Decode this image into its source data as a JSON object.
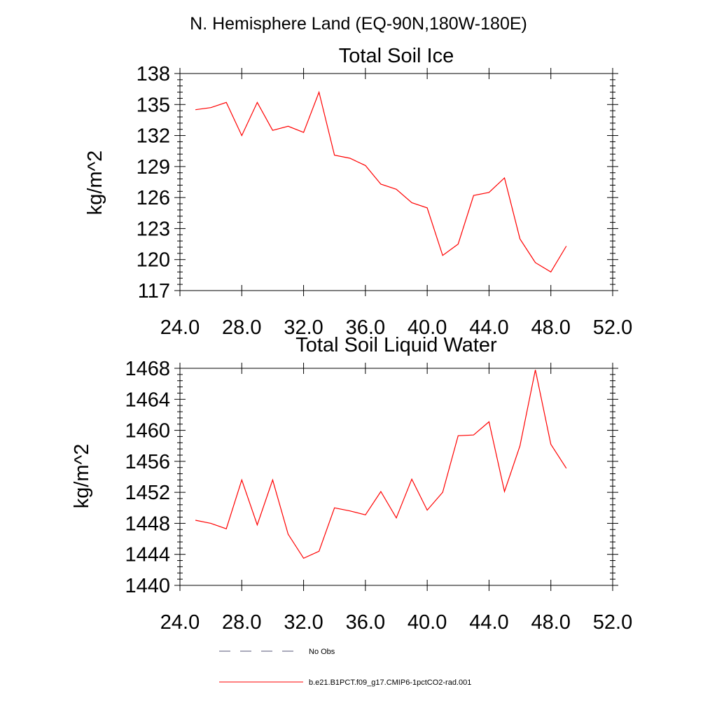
{
  "figure": {
    "main_title": "N. Hemisphere Land (EQ-90N,180W-180E)"
  },
  "legend": {
    "items": [
      {
        "label": "No Obs",
        "style": "dashed",
        "color": "#555577"
      },
      {
        "label": "b.e21.B1PCT.f09_g17.CMIP6-1pctCO2-rad.001",
        "style": "solid",
        "color": "#ff0000"
      }
    ]
  },
  "chart_data": [
    {
      "type": "line",
      "title": "Total Soil Ice",
      "xlabel": "",
      "ylabel": "kg/m^2",
      "xlim": [
        24,
        52
      ],
      "ylim": [
        117,
        138
      ],
      "xticks": [
        "24.0",
        "28.0",
        "32.0",
        "36.0",
        "40.0",
        "44.0",
        "48.0",
        "52.0"
      ],
      "yticks": [
        "117",
        "120",
        "123",
        "126",
        "129",
        "132",
        "135",
        "138"
      ],
      "line_color": "#ff0000",
      "x": [
        25,
        26,
        27,
        28,
        29,
        30,
        31,
        32,
        33,
        34,
        35,
        36,
        37,
        38,
        39,
        40,
        41,
        42,
        43,
        44,
        45,
        46,
        47,
        48,
        49
      ],
      "values": [
        134.5,
        134.7,
        135.2,
        132.0,
        135.2,
        132.5,
        132.9,
        132.3,
        136.2,
        130.1,
        129.8,
        129.1,
        127.3,
        126.8,
        125.5,
        125.0,
        120.4,
        121.5,
        126.2,
        126.5,
        127.9,
        122.0,
        119.7,
        118.8,
        121.3
      ]
    },
    {
      "type": "line",
      "title": "Total Soil Liquid Water",
      "xlabel": "",
      "ylabel": "kg/m^2",
      "xlim": [
        24,
        52
      ],
      "ylim": [
        1440,
        1468
      ],
      "xticks": [
        "24.0",
        "28.0",
        "32.0",
        "36.0",
        "40.0",
        "44.0",
        "48.0",
        "52.0"
      ],
      "yticks": [
        "1440",
        "1444",
        "1448",
        "1452",
        "1456",
        "1460",
        "1464",
        "1468"
      ],
      "line_color": "#ff0000",
      "x": [
        25,
        26,
        27,
        28,
        29,
        30,
        31,
        32,
        33,
        34,
        35,
        36,
        37,
        38,
        39,
        40,
        41,
        42,
        43,
        44,
        45,
        46,
        47,
        48,
        49
      ],
      "values": [
        1448.4,
        1448.0,
        1447.3,
        1453.6,
        1447.8,
        1453.6,
        1446.6,
        1443.5,
        1444.4,
        1450.0,
        1449.6,
        1449.1,
        1452.1,
        1448.7,
        1453.7,
        1449.7,
        1452.0,
        1459.3,
        1459.4,
        1461.1,
        1452.1,
        1458.0,
        1467.8,
        1458.2,
        1455.1
      ]
    }
  ]
}
